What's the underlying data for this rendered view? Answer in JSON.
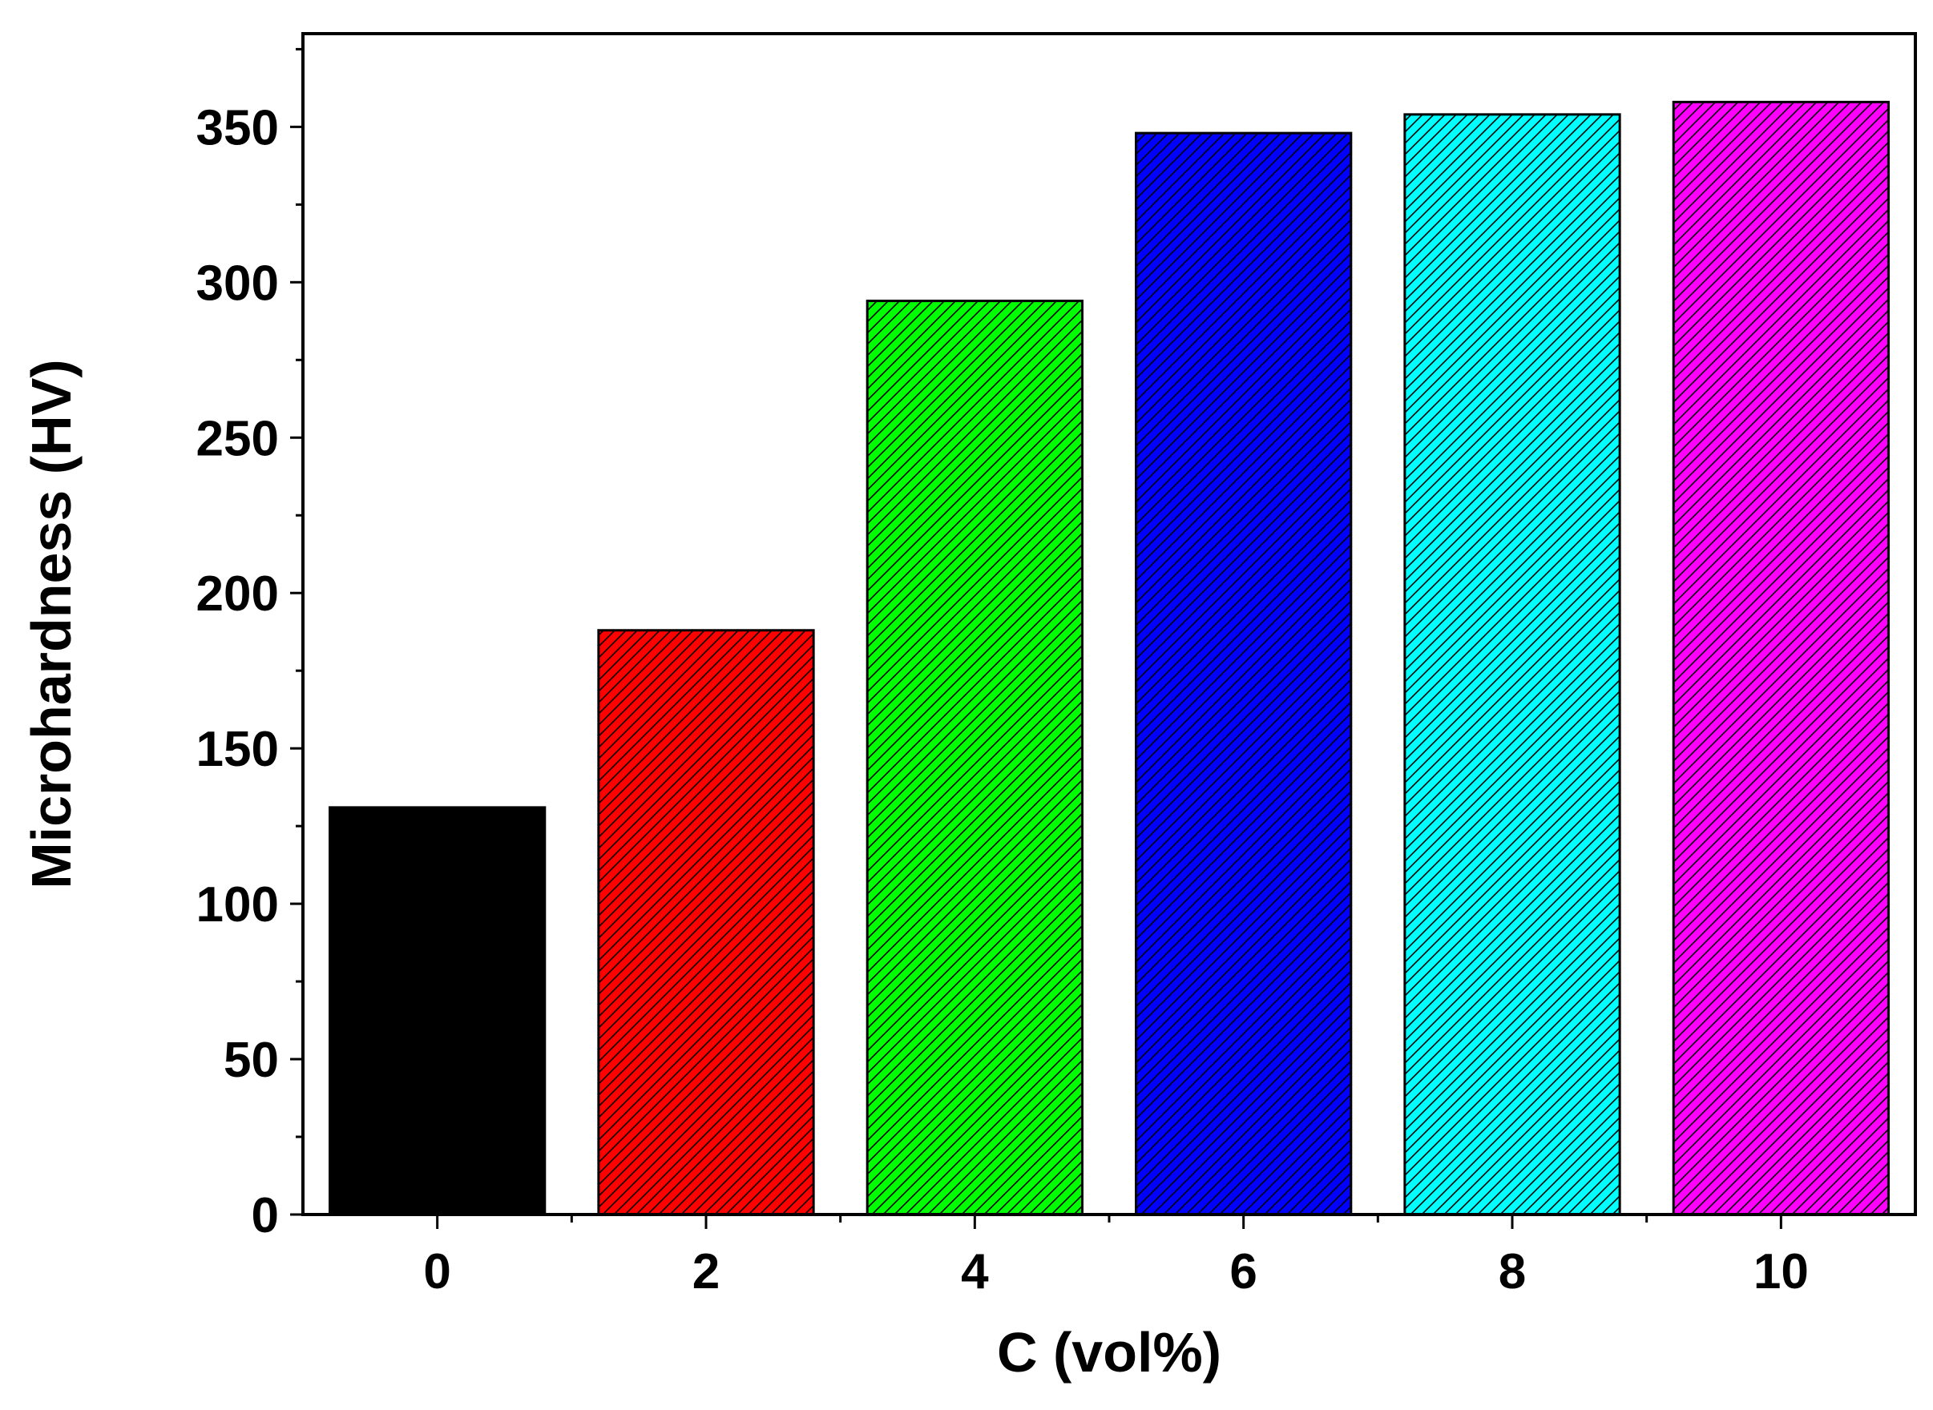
{
  "chart_data": {
    "type": "bar",
    "categories": [
      "0",
      "2",
      "4",
      "6",
      "8",
      "10"
    ],
    "values": [
      131,
      188,
      294,
      348,
      354,
      358
    ],
    "colors": [
      "#000000",
      "#ff0000",
      "#00ff00",
      "#0000ff",
      "#00ffff",
      "#ff00ff"
    ],
    "hatched": [
      false,
      true,
      true,
      true,
      true,
      true
    ],
    "xlabel": "C (vol%)",
    "ylabel": "Microhardness (HV)",
    "ylim": [
      0,
      380
    ],
    "yticks": [
      0,
      50,
      100,
      150,
      200,
      250,
      300,
      350
    ],
    "grid": false
  }
}
